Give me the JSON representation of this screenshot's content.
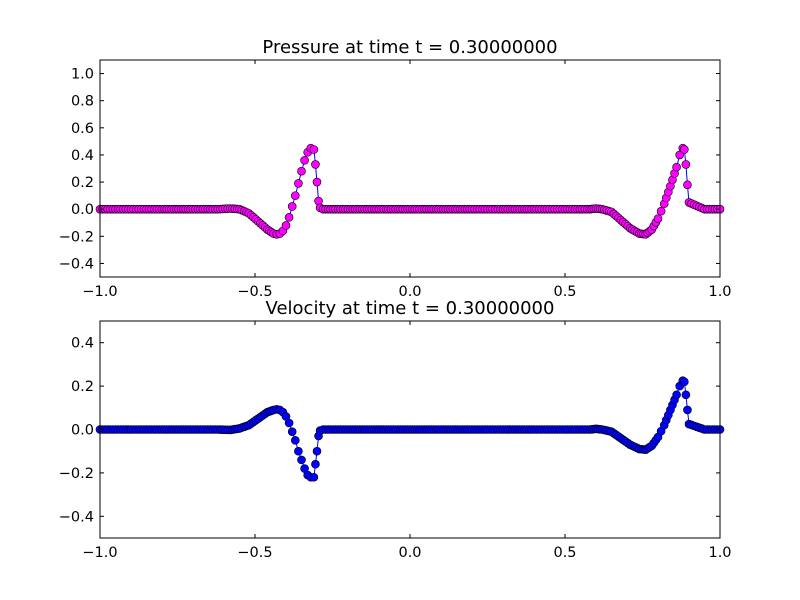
{
  "chart_data": [
    {
      "type": "line",
      "title": "Pressure at time t =     0.30000000",
      "xlabel": "",
      "ylabel": "",
      "xlim": [
        -1.0,
        1.0
      ],
      "ylim": [
        -0.5,
        1.1
      ],
      "xticks": [
        -1.0,
        -0.5,
        0.0,
        0.5,
        1.0
      ],
      "xtick_labels": [
        "−1.0",
        "−0.5",
        "0.0",
        "0.5",
        "1.0"
      ],
      "yticks": [
        -0.4,
        -0.2,
        0.0,
        0.2,
        0.4,
        0.6,
        0.8,
        1.0
      ],
      "ytick_labels": [
        "−0.4",
        "−0.2",
        "0.0",
        "0.2",
        "0.4",
        "0.6",
        "0.8",
        "1.0"
      ],
      "grid": false,
      "marker_color": "#ff00ff",
      "line_color": "#0000ff",
      "series": [
        {
          "x": [
            -1.0,
            -0.9,
            -0.8,
            -0.7,
            -0.62,
            -0.58,
            -0.55,
            -0.52,
            -0.49,
            -0.46,
            -0.44,
            -0.43,
            -0.42,
            -0.41,
            -0.4,
            -0.39,
            -0.38,
            -0.37,
            -0.36,
            -0.35,
            -0.34,
            -0.33,
            -0.32,
            -0.31,
            -0.305,
            -0.3,
            -0.295,
            -0.29,
            -0.28,
            -0.2,
            -0.1,
            0.0,
            0.1,
            0.2,
            0.3,
            0.4,
            0.5,
            0.58,
            0.6,
            0.62,
            0.65,
            0.68,
            0.71,
            0.74,
            0.76,
            0.78,
            0.8,
            0.82,
            0.84,
            0.86,
            0.87,
            0.88,
            0.885,
            0.89,
            0.895,
            0.9,
            0.95,
            1.0
          ],
          "y": [
            0.0,
            0.0,
            0.0,
            0.0,
            0.0,
            0.005,
            0.0,
            -0.03,
            -0.09,
            -0.15,
            -0.18,
            -0.185,
            -0.18,
            -0.16,
            -0.12,
            -0.06,
            0.02,
            0.1,
            0.19,
            0.28,
            0.36,
            0.42,
            0.45,
            0.44,
            0.33,
            0.2,
            0.06,
            0.01,
            0.0,
            0.0,
            0.0,
            0.0,
            0.0,
            0.0,
            0.0,
            0.0,
            0.0,
            0.0,
            0.005,
            0.0,
            -0.02,
            -0.08,
            -0.14,
            -0.18,
            -0.185,
            -0.15,
            -0.07,
            0.04,
            0.17,
            0.31,
            0.4,
            0.45,
            0.44,
            0.33,
            0.18,
            0.05,
            0.0,
            0.0
          ]
        }
      ]
    },
    {
      "type": "line",
      "title": "Velocity at time t =     0.30000000",
      "xlabel": "",
      "ylabel": "",
      "xlim": [
        -1.0,
        1.0
      ],
      "ylim": [
        -0.5,
        0.5
      ],
      "xticks": [
        -1.0,
        -0.5,
        0.0,
        0.5,
        1.0
      ],
      "xtick_labels": [
        "−1.0",
        "−0.5",
        "0.0",
        "0.5",
        "1.0"
      ],
      "yticks": [
        -0.4,
        -0.2,
        0.0,
        0.2,
        0.4
      ],
      "ytick_labels": [
        "−0.4",
        "−0.2",
        "0.0",
        "0.2",
        "0.4"
      ],
      "grid": false,
      "marker_color": "#0000ff",
      "line_color": "#0000ff",
      "series": [
        {
          "x": [
            -1.0,
            -0.9,
            -0.8,
            -0.7,
            -0.62,
            -0.58,
            -0.55,
            -0.52,
            -0.49,
            -0.46,
            -0.44,
            -0.43,
            -0.42,
            -0.41,
            -0.4,
            -0.39,
            -0.38,
            -0.37,
            -0.36,
            -0.35,
            -0.34,
            -0.33,
            -0.32,
            -0.31,
            -0.305,
            -0.3,
            -0.295,
            -0.29,
            -0.28,
            -0.2,
            -0.1,
            0.0,
            0.1,
            0.2,
            0.3,
            0.4,
            0.5,
            0.58,
            0.6,
            0.62,
            0.65,
            0.68,
            0.71,
            0.74,
            0.76,
            0.78,
            0.8,
            0.82,
            0.84,
            0.86,
            0.87,
            0.88,
            0.885,
            0.89,
            0.895,
            0.9,
            0.95,
            1.0
          ],
          "y": [
            0.0,
            0.0,
            0.0,
            0.0,
            0.0,
            -0.002,
            0.005,
            0.02,
            0.05,
            0.08,
            0.09,
            0.093,
            0.09,
            0.08,
            0.06,
            0.03,
            -0.01,
            -0.05,
            -0.1,
            -0.14,
            -0.18,
            -0.21,
            -0.22,
            -0.22,
            -0.16,
            -0.1,
            -0.03,
            -0.005,
            0.0,
            0.0,
            0.0,
            0.0,
            0.0,
            0.0,
            0.0,
            0.0,
            0.0,
            0.0,
            0.003,
            0.0,
            -0.01,
            -0.04,
            -0.07,
            -0.09,
            -0.093,
            -0.075,
            -0.035,
            0.02,
            0.09,
            0.16,
            0.2,
            0.225,
            0.22,
            0.16,
            0.09,
            0.025,
            0.0,
            0.0
          ]
        }
      ]
    }
  ]
}
